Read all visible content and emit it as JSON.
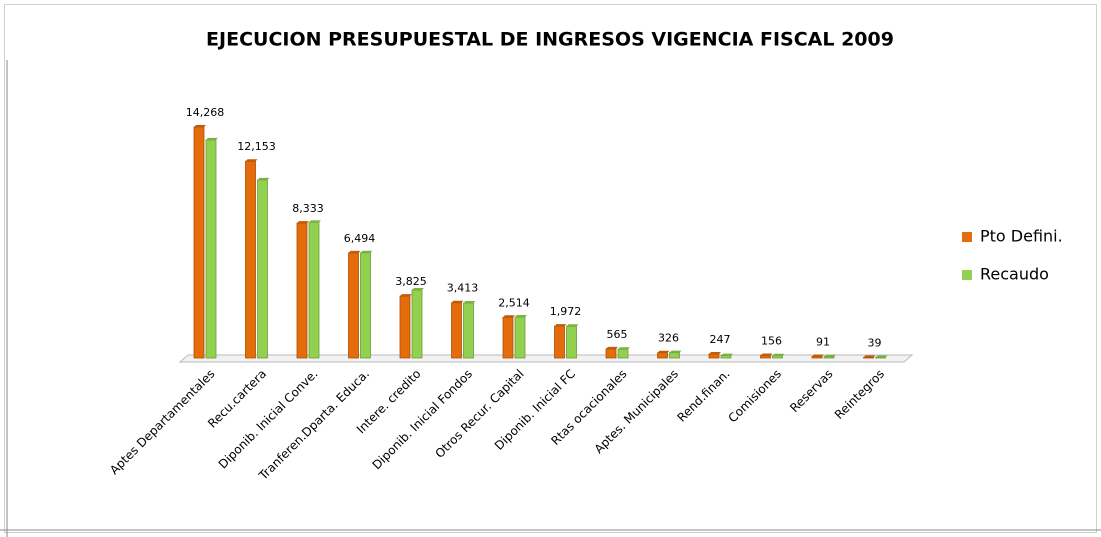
{
  "chart_data": {
    "type": "bar",
    "title": "EJECUCION PRESUPUESTAL DE INGRESOS  VIGENCIA FISCAL 2009",
    "categories": [
      "Aptes Departamentales",
      "Recu.cartera",
      "Diponib. Inicial Conve.",
      "Tranferen.Dparta. Educa.",
      "Intere. credito",
      "Diponib. Inicial Fondos",
      "Otros Recur. Capital",
      "Diponib. Inicial FC",
      "Rtas ocacionales",
      "Aptes. Municipales",
      "Rend.finan.",
      "Comisiones",
      "Reservas",
      "Reintegros"
    ],
    "series": [
      {
        "name": "Pto Defini.",
        "color": "#e46c0a",
        "values": [
          14268,
          12153,
          8333,
          6494,
          3825,
          3413,
          2514,
          1972,
          565,
          326,
          247,
          156,
          91,
          39
        ],
        "value_labels": [
          "14,268",
          "12,153",
          "8,333",
          "6,494",
          "3,825",
          "3,413",
          "2,514",
          "1,972",
          "565",
          "326",
          "247",
          "156",
          "91",
          "39"
        ]
      },
      {
        "name": "Recaudo",
        "color": "#92d050",
        "values": [
          13470,
          11000,
          8380,
          6500,
          4200,
          3400,
          2530,
          1960,
          540,
          330,
          150,
          140,
          80,
          30
        ]
      }
    ],
    "legend": "right"
  }
}
